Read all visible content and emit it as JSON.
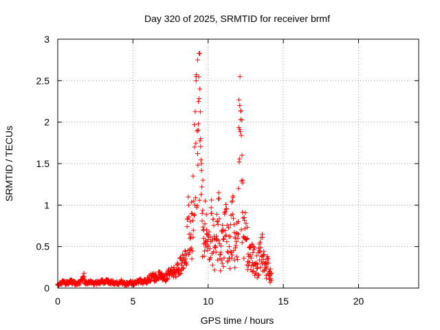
{
  "chart_data": {
    "type": "scatter",
    "title": "Day 320 of 2025, SRMTID for receiver brmf",
    "xlabel": "GPS time / hours",
    "ylabel": "SRMTID / TECUs",
    "xlim": [
      0,
      24
    ],
    "ylim": [
      0,
      3
    ],
    "xticks": [
      0,
      5,
      10,
      15,
      20
    ],
    "xtick_labels": [
      "0",
      "5",
      "10",
      "15",
      "20"
    ],
    "yticks": [
      0,
      0.5,
      1,
      1.5,
      2,
      2.5,
      3
    ],
    "ytick_labels": [
      "0",
      "0.5",
      "1",
      "1.5",
      "2",
      "2.5",
      "3"
    ],
    "grid": true,
    "marker": "+",
    "series": [
      {
        "name": "brmf",
        "color": "#ff0000",
        "envelope_note": "data spans 0 to 14.2 hours; quiet (~0.05-0.1) until ~6h, rising to ~0.15-0.3 by 8.5h, strong activity 8.5-14.2h",
        "x": [
          0.0,
          0.3,
          0.6,
          0.9,
          1.2,
          1.5,
          1.75,
          1.8,
          2.1,
          2.4,
          2.7,
          3.0,
          3.3,
          3.6,
          3.9,
          4.2,
          4.5,
          4.8,
          5.1,
          5.4,
          5.7,
          6.0,
          6.2,
          6.5,
          6.8,
          7.1,
          7.4,
          7.7,
          8.0,
          8.2,
          8.5,
          8.7,
          8.8,
          8.9,
          9.0,
          9.1,
          9.2,
          9.3,
          9.35,
          9.4,
          9.45,
          9.5,
          9.55,
          9.6,
          9.65,
          9.7,
          9.8,
          9.9,
          10.0,
          10.2,
          10.4,
          10.6,
          10.7,
          10.8,
          11.0,
          11.2,
          11.4,
          11.6,
          11.8,
          12.0,
          12.05,
          12.1,
          12.15,
          12.2,
          12.25,
          12.3,
          12.4,
          12.6,
          12.8,
          13.0,
          13.2,
          13.4,
          13.6,
          13.7,
          13.8,
          13.9,
          14.0,
          14.1,
          14.2
        ],
        "y": [
          0.05,
          0.07,
          0.06,
          0.08,
          0.06,
          0.07,
          0.14,
          0.06,
          0.08,
          0.06,
          0.07,
          0.08,
          0.09,
          0.07,
          0.06,
          0.08,
          0.05,
          0.07,
          0.06,
          0.09,
          0.08,
          0.1,
          0.15,
          0.13,
          0.16,
          0.12,
          0.18,
          0.2,
          0.24,
          0.3,
          0.35,
          1.0,
          0.6,
          0.9,
          1.35,
          1.7,
          2.5,
          2.75,
          1.98,
          2.83,
          2.4,
          1.8,
          1.5,
          0.9,
          1.3,
          0.6,
          1.05,
          0.7,
          0.5,
          0.9,
          0.6,
          0.8,
          1.15,
          0.4,
          0.7,
          0.95,
          0.5,
          1.05,
          0.6,
          0.8,
          2.27,
          2.2,
          2.03,
          1.84,
          1.6,
          1.3,
          0.85,
          0.6,
          0.4,
          0.5,
          0.3,
          0.45,
          0.65,
          0.4,
          0.25,
          0.35,
          0.3,
          0.2,
          0.18
        ]
      }
    ]
  }
}
